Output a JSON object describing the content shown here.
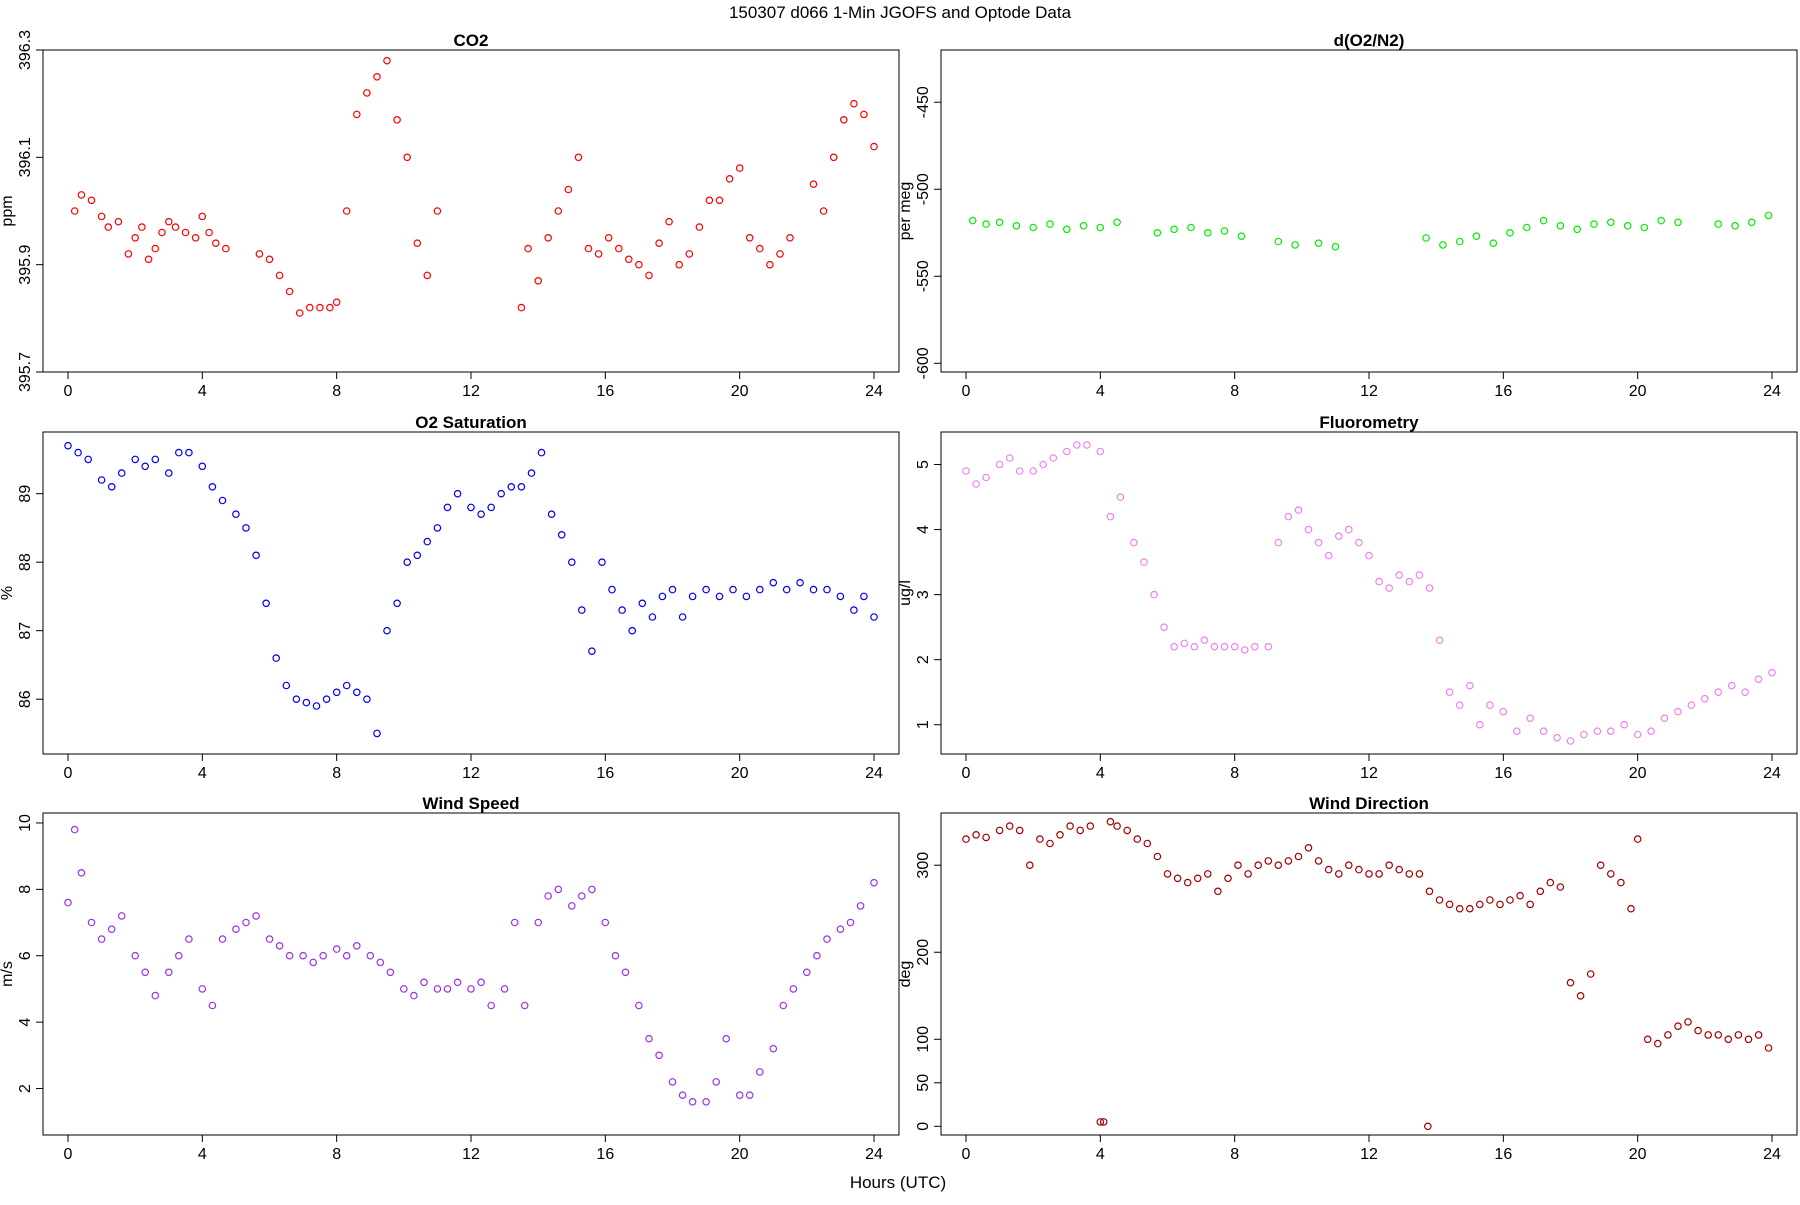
{
  "figure": {
    "title": "150307   d066   1-Min  JGOFS and Optode Data",
    "xlabel": "Hours (UTC)"
  },
  "chart_data": [
    {
      "type": "scatter",
      "title": "CO2",
      "xlabel": "",
      "ylabel": "ppm",
      "xlim": [
        0,
        24
      ],
      "ylim": [
        395.7,
        396.3
      ],
      "xticks": [
        "0",
        "4",
        "8",
        "12",
        "16",
        "20",
        "24"
      ],
      "yticks": [
        "395.7",
        "395.9",
        "396.1",
        "396.3"
      ],
      "color": "#ff0000",
      "series": [
        {
          "x": [
            0.2,
            0.4,
            0.7,
            1.0,
            1.2,
            1.5,
            1.8,
            2.0,
            2.2,
            2.4,
            2.6,
            2.8,
            3.0,
            3.2,
            3.5,
            3.8,
            4.0,
            4.2,
            4.4,
            4.7,
            5.7,
            6.0,
            6.3,
            6.6,
            6.9,
            7.2,
            7.5,
            7.8,
            8.0,
            8.3,
            8.6,
            8.9,
            9.2,
            9.5,
            9.8,
            10.1,
            10.4,
            10.7,
            11.0,
            13.5,
            13.7,
            14.0,
            14.3,
            14.6,
            14.9,
            15.2,
            15.5,
            15.8,
            16.1,
            16.4,
            16.7,
            17.0,
            17.3,
            17.6,
            17.9,
            18.2,
            18.5,
            18.8,
            19.1,
            19.4,
            19.7,
            20.0,
            20.3,
            20.6,
            20.9,
            21.2,
            21.5,
            22.2,
            22.5,
            22.8,
            23.1,
            23.4,
            23.7,
            24.0
          ],
          "y": [
            396.0,
            396.03,
            396.02,
            395.99,
            395.97,
            395.98,
            395.92,
            395.95,
            395.97,
            395.91,
            395.93,
            395.96,
            395.98,
            395.97,
            395.96,
            395.95,
            395.99,
            395.96,
            395.94,
            395.93,
            395.92,
            395.91,
            395.88,
            395.85,
            395.81,
            395.82,
            395.82,
            395.82,
            395.83,
            396.0,
            396.18,
            396.22,
            396.25,
            396.28,
            396.17,
            396.1,
            395.94,
            395.88,
            396.0,
            395.82,
            395.93,
            395.87,
            395.95,
            396.0,
            396.04,
            396.1,
            395.93,
            395.92,
            395.95,
            395.93,
            395.91,
            395.9,
            395.88,
            395.94,
            395.98,
            395.9,
            395.92,
            395.97,
            396.02,
            396.02,
            396.06,
            396.08,
            395.95,
            395.93,
            395.9,
            395.92,
            395.95,
            396.05,
            396.0,
            396.1,
            396.17,
            396.2,
            396.18,
            396.12
          ]
        }
      ]
    },
    {
      "type": "scatter",
      "title": "d(O2/N2)",
      "xlabel": "",
      "ylabel": "per meg",
      "xlim": [
        0,
        24
      ],
      "ylim": [
        -605,
        -420
      ],
      "xticks": [
        "0",
        "4",
        "8",
        "12",
        "16",
        "20",
        "24"
      ],
      "yticks": [
        "-600",
        "-550",
        "-500",
        "-450"
      ],
      "color": "#00ee00",
      "series": [
        {
          "x": [
            0.2,
            0.6,
            1.0,
            1.5,
            2.0,
            2.5,
            3.0,
            3.5,
            4.0,
            4.5,
            5.7,
            6.2,
            6.7,
            7.2,
            7.7,
            8.2,
            9.3,
            9.8,
            10.5,
            11.0,
            13.7,
            14.2,
            14.7,
            15.2,
            15.7,
            16.2,
            16.7,
            17.2,
            17.7,
            18.2,
            18.7,
            19.2,
            19.7,
            20.2,
            20.7,
            21.2,
            22.4,
            22.9,
            23.4,
            23.9
          ],
          "y": [
            -518,
            -520,
            -519,
            -521,
            -522,
            -520,
            -523,
            -521,
            -522,
            -519,
            -525,
            -523,
            -522,
            -525,
            -524,
            -527,
            -530,
            -532,
            -531,
            -533,
            -528,
            -532,
            -530,
            -527,
            -531,
            -525,
            -522,
            -518,
            -521,
            -523,
            -520,
            -519,
            -521,
            -522,
            -518,
            -519,
            -520,
            -521,
            -519,
            -515
          ]
        }
      ]
    },
    {
      "type": "scatter",
      "title": "O2 Saturation",
      "xlabel": "",
      "ylabel": "%",
      "xlim": [
        0,
        24
      ],
      "ylim": [
        85.2,
        89.9
      ],
      "xticks": [
        "0",
        "4",
        "8",
        "12",
        "16",
        "20",
        "24"
      ],
      "yticks": [
        "86",
        "87",
        "88",
        "89"
      ],
      "color": "#0000ee",
      "series": [
        {
          "x": [
            0.0,
            0.3,
            0.6,
            1.0,
            1.3,
            1.6,
            2.0,
            2.3,
            2.6,
            3.0,
            3.3,
            3.6,
            4.0,
            4.3,
            4.6,
            5.0,
            5.3,
            5.6,
            5.9,
            6.2,
            6.5,
            6.8,
            7.1,
            7.4,
            7.7,
            8.0,
            8.3,
            8.6,
            8.9,
            9.2,
            9.5,
            9.8,
            10.1,
            10.4,
            10.7,
            11.0,
            11.3,
            11.6,
            12.0,
            12.3,
            12.6,
            12.9,
            13.2,
            13.5,
            13.8,
            14.1,
            14.4,
            14.7,
            15.0,
            15.3,
            15.6,
            15.9,
            16.2,
            16.5,
            16.8,
            17.1,
            17.4,
            17.7,
            18.0,
            18.3,
            18.6,
            19.0,
            19.4,
            19.8,
            20.2,
            20.6,
            21.0,
            21.4,
            21.8,
            22.2,
            22.6,
            23.0,
            23.4,
            23.7,
            24.0
          ],
          "y": [
            89.7,
            89.6,
            89.5,
            89.2,
            89.1,
            89.3,
            89.5,
            89.4,
            89.5,
            89.3,
            89.6,
            89.6,
            89.4,
            89.1,
            88.9,
            88.7,
            88.5,
            88.1,
            87.4,
            86.6,
            86.2,
            86.0,
            85.95,
            85.9,
            86.0,
            86.1,
            86.2,
            86.1,
            86.0,
            85.5,
            87.0,
            87.4,
            88.0,
            88.1,
            88.3,
            88.5,
            88.8,
            89.0,
            88.8,
            88.7,
            88.8,
            89.0,
            89.1,
            89.1,
            89.3,
            89.6,
            88.7,
            88.4,
            88.0,
            87.3,
            86.7,
            88.0,
            87.6,
            87.3,
            87.0,
            87.4,
            87.2,
            87.5,
            87.6,
            87.2,
            87.5,
            87.6,
            87.5,
            87.6,
            87.5,
            87.6,
            87.7,
            87.6,
            87.7,
            87.6,
            87.6,
            87.5,
            87.3,
            87.5,
            87.2
          ]
        }
      ]
    },
    {
      "type": "scatter",
      "title": "Fluorometry",
      "xlabel": "",
      "ylabel": "ug/l",
      "xlim": [
        0,
        24
      ],
      "ylim": [
        0.55,
        5.5
      ],
      "xticks": [
        "0",
        "4",
        "8",
        "12",
        "16",
        "20",
        "24"
      ],
      "yticks": [
        "1",
        "2",
        "3",
        "4",
        "5"
      ],
      "color": "#ee82ee",
      "series": [
        {
          "x": [
            0.0,
            0.3,
            0.6,
            1.0,
            1.3,
            1.6,
            2.0,
            2.3,
            2.6,
            3.0,
            3.3,
            3.6,
            4.0,
            4.3,
            4.6,
            5.0,
            5.3,
            5.6,
            5.9,
            6.2,
            6.5,
            6.8,
            7.1,
            7.4,
            7.7,
            8.0,
            8.3,
            8.6,
            9.0,
            9.3,
            9.6,
            9.9,
            10.2,
            10.5,
            10.8,
            11.1,
            11.4,
            11.7,
            12.0,
            12.3,
            12.6,
            12.9,
            13.2,
            13.5,
            13.8,
            14.1,
            14.4,
            14.7,
            15.0,
            15.3,
            15.6,
            16.0,
            16.4,
            16.8,
            17.2,
            17.6,
            18.0,
            18.4,
            18.8,
            19.2,
            19.6,
            20.0,
            20.4,
            20.8,
            21.2,
            21.6,
            22.0,
            22.4,
            22.8,
            23.2,
            23.6,
            24.0
          ],
          "y": [
            4.9,
            4.7,
            4.8,
            5.0,
            5.1,
            4.9,
            4.9,
            5.0,
            5.1,
            5.2,
            5.3,
            5.3,
            5.2,
            4.2,
            4.5,
            3.8,
            3.5,
            3.0,
            2.5,
            2.2,
            2.25,
            2.2,
            2.3,
            2.2,
            2.2,
            2.2,
            2.15,
            2.2,
            2.2,
            3.8,
            4.2,
            4.3,
            4.0,
            3.8,
            3.6,
            3.9,
            4.0,
            3.8,
            3.6,
            3.2,
            3.1,
            3.3,
            3.2,
            3.3,
            3.1,
            2.3,
            1.5,
            1.3,
            1.6,
            1.0,
            1.3,
            1.2,
            0.9,
            1.1,
            0.9,
            0.8,
            0.75,
            0.85,
            0.9,
            0.9,
            1.0,
            0.85,
            0.9,
            1.1,
            1.2,
            1.3,
            1.4,
            1.5,
            1.6,
            1.5,
            1.7,
            1.8
          ]
        }
      ]
    },
    {
      "type": "scatter",
      "title": "Wind Speed",
      "xlabel": "",
      "ylabel": "m/s",
      "xlim": [
        0,
        24
      ],
      "ylim": [
        0.6,
        10.3
      ],
      "xticks": [
        "0",
        "4",
        "8",
        "12",
        "16",
        "20",
        "24"
      ],
      "yticks": [
        "2",
        "4",
        "6",
        "8",
        "10"
      ],
      "color": "#9a32e6",
      "series": [
        {
          "x": [
            0.0,
            0.2,
            0.4,
            0.7,
            1.0,
            1.3,
            1.6,
            2.0,
            2.3,
            2.6,
            3.0,
            3.3,
            3.6,
            4.0,
            4.3,
            4.6,
            5.0,
            5.3,
            5.6,
            6.0,
            6.3,
            6.6,
            7.0,
            7.3,
            7.6,
            8.0,
            8.3,
            8.6,
            9.0,
            9.3,
            9.6,
            10.0,
            10.3,
            10.6,
            11.0,
            11.3,
            11.6,
            12.0,
            12.3,
            12.6,
            13.0,
            13.3,
            13.6,
            14.0,
            14.3,
            14.6,
            15.0,
            15.3,
            15.6,
            16.0,
            16.3,
            16.6,
            17.0,
            17.3,
            17.6,
            18.0,
            18.3,
            18.6,
            19.0,
            19.3,
            19.6,
            20.0,
            20.3,
            20.6,
            21.0,
            21.3,
            21.6,
            22.0,
            22.3,
            22.6,
            23.0,
            23.3,
            23.6,
            24.0
          ],
          "y": [
            7.6,
            9.8,
            8.5,
            7.0,
            6.5,
            6.8,
            7.2,
            6.0,
            5.5,
            4.8,
            5.5,
            6.0,
            6.5,
            5.0,
            4.5,
            6.5,
            6.8,
            7.0,
            7.2,
            6.5,
            6.3,
            6.0,
            6.0,
            5.8,
            6.0,
            6.2,
            6.0,
            6.3,
            6.0,
            5.8,
            5.5,
            5.0,
            4.8,
            5.2,
            5.0,
            5.0,
            5.2,
            5.0,
            5.2,
            4.5,
            5.0,
            7.0,
            4.5,
            7.0,
            7.8,
            8.0,
            7.5,
            7.8,
            8.0,
            7.0,
            6.0,
            5.5,
            4.5,
            3.5,
            3.0,
            2.2,
            1.8,
            1.6,
            1.6,
            2.2,
            3.5,
            1.8,
            1.8,
            2.5,
            3.2,
            4.5,
            5.0,
            5.5,
            6.0,
            6.5,
            6.8,
            7.0,
            7.5,
            8.2
          ]
        }
      ]
    },
    {
      "type": "scatter",
      "title": "Wind Direction",
      "xlabel": "",
      "ylabel": "deg",
      "xlim": [
        0,
        24
      ],
      "ylim": [
        -10,
        360
      ],
      "xticks": [
        "0",
        "4",
        "8",
        "12",
        "16",
        "20",
        "24"
      ],
      "yticks": [
        "0",
        "50",
        "100",
        "200",
        "300"
      ],
      "color": "#a00000",
      "series": [
        {
          "x": [
            0.0,
            0.3,
            0.6,
            1.0,
            1.3,
            1.6,
            1.9,
            2.2,
            2.5,
            2.8,
            3.1,
            3.4,
            3.7,
            4.0,
            4.1,
            4.3,
            4.5,
            4.8,
            5.1,
            5.4,
            5.7,
            6.0,
            6.3,
            6.6,
            6.9,
            7.2,
            7.5,
            7.8,
            8.1,
            8.4,
            8.7,
            9.0,
            9.3,
            9.6,
            9.9,
            10.2,
            10.5,
            10.8,
            11.1,
            11.4,
            11.7,
            12.0,
            12.3,
            12.6,
            12.9,
            13.2,
            13.5,
            13.75,
            13.8,
            14.1,
            14.4,
            14.7,
            15.0,
            15.3,
            15.6,
            15.9,
            16.2,
            16.5,
            16.8,
            17.1,
            17.4,
            17.7,
            18.0,
            18.3,
            18.6,
            18.9,
            19.2,
            19.5,
            19.8,
            20.0,
            20.3,
            20.6,
            20.9,
            21.2,
            21.5,
            21.8,
            22.1,
            22.4,
            22.7,
            23.0,
            23.3,
            23.6,
            23.9
          ],
          "y": [
            330,
            335,
            332,
            340,
            345,
            340,
            300,
            330,
            325,
            335,
            345,
            340,
            345,
            5,
            5,
            350,
            345,
            340,
            330,
            325,
            310,
            290,
            285,
            280,
            285,
            290,
            270,
            285,
            300,
            290,
            300,
            305,
            300,
            305,
            310,
            320,
            305,
            295,
            290,
            300,
            295,
            290,
            290,
            300,
            295,
            290,
            290,
            0,
            270,
            260,
            255,
            250,
            250,
            255,
            260,
            255,
            260,
            265,
            255,
            270,
            280,
            275,
            165,
            150,
            175,
            300,
            290,
            280,
            250,
            330,
            100,
            95,
            105,
            115,
            120,
            110,
            105,
            105,
            100,
            105,
            100,
            105,
            90
          ]
        }
      ]
    }
  ]
}
